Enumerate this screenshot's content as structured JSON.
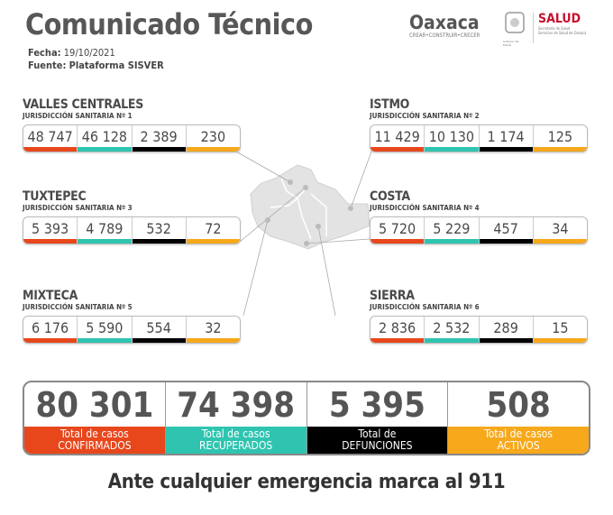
{
  "header": {
    "title": "Comunicado Técnico",
    "fecha_label": "Fecha:",
    "fecha": "19/10/2021",
    "fuente_label": "Fuente:",
    "fuente": "Plataforma SISVER"
  },
  "logos": {
    "oaxaca": "Oaxaca",
    "oaxaca_tagline": "CREAR•CONSTRUIR•CRECER",
    "gobierno": "Gobierno del Estado",
    "salud": "SALUD",
    "salud_sub": "Secretaría de Salud",
    "salud_sub2": "Servicios de Salud de Oaxaca"
  },
  "colors": {
    "confirmados": "#e8471c",
    "recuperados": "#2ec4b0",
    "defunciones": "#000000",
    "activos": "#f7a81b"
  },
  "regions": [
    {
      "name": "VALLES CENTRALES",
      "sub": "JURISDICCIÓN SANITARIA Nº 1",
      "values": [
        "48 747",
        "46 128",
        "2 389",
        "230"
      ]
    },
    {
      "name": "ISTMO",
      "sub": "JURISDICCIÓN SANITARIA Nº 2",
      "values": [
        "11 429",
        "10 130",
        "1 174",
        "125"
      ]
    },
    {
      "name": "TUXTEPEC",
      "sub": "JURISDICCIÓN SANITARIA Nº 3",
      "values": [
        "5 393",
        "4 789",
        "532",
        "72"
      ]
    },
    {
      "name": "COSTA",
      "sub": "JURISDICCIÓN SANITARIA Nº 4",
      "values": [
        "5 720",
        "5 229",
        "457",
        "34"
      ]
    },
    {
      "name": "MIXTECA",
      "sub": "JURISDICCIÓN SANITARIA Nº 5",
      "values": [
        "6 176",
        "5 590",
        "554",
        "32"
      ]
    },
    {
      "name": "SIERRA",
      "sub": "JURISDICCIÓN SANITARIA Nº 6",
      "values": [
        "2 836",
        "2 532",
        "289",
        "15"
      ]
    }
  ],
  "totals": [
    {
      "value": "80 301",
      "label1": "Total de casos",
      "label2": "CONFIRMADOS"
    },
    {
      "value": "74 398",
      "label1": "Total de casos",
      "label2": "RECUPERADOS"
    },
    {
      "value": "5 395",
      "label1": "Total de",
      "label2": "DEFUNCIONES"
    },
    {
      "value": "508",
      "label1": "Total de casos",
      "label2": "ACTIVOS"
    }
  ],
  "footer": "Ante cualquier emergencia marca al 911"
}
